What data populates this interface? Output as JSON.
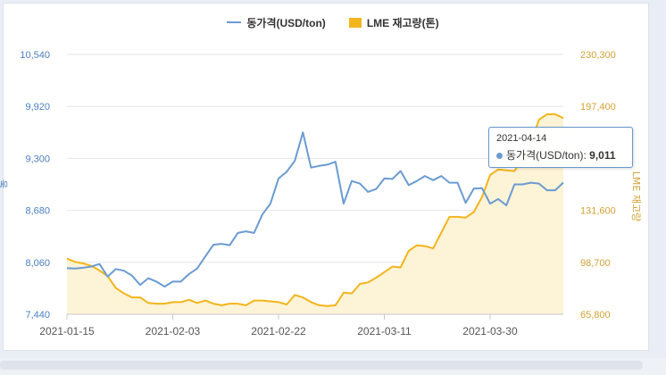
{
  "colors": {
    "price": "#6b9bd1",
    "stock_line": "#f2b51c",
    "stock_fill": "#fdf3d7",
    "grid": "#e6e6e6",
    "left_axis_text": "#4a7fc1",
    "right_axis_text": "#d2a335",
    "x_axis_text": "#555555"
  },
  "legend": {
    "price_label": "동가격(USD/ton)",
    "stock_label": "LME 재고량(톤)"
  },
  "tooltip": {
    "date": "2021-04-14",
    "series_label": "동가격(USD/ton):",
    "value": "9,011"
  },
  "chart_data": {
    "type": "line",
    "dates": [
      "2021-01-15",
      "2021-01-18",
      "2021-01-19",
      "2021-01-20",
      "2021-01-21",
      "2021-01-22",
      "2021-01-25",
      "2021-01-26",
      "2021-01-27",
      "2021-01-28",
      "2021-01-29",
      "2021-02-01",
      "2021-02-02",
      "2021-02-03",
      "2021-02-04",
      "2021-02-05",
      "2021-02-08",
      "2021-02-09",
      "2021-02-10",
      "2021-02-11",
      "2021-02-12",
      "2021-02-15",
      "2021-02-16",
      "2021-02-17",
      "2021-02-18",
      "2021-02-19",
      "2021-02-22",
      "2021-02-23",
      "2021-02-24",
      "2021-02-25",
      "2021-02-26",
      "2021-03-01",
      "2021-03-02",
      "2021-03-03",
      "2021-03-04",
      "2021-03-05",
      "2021-03-08",
      "2021-03-09",
      "2021-03-10",
      "2021-03-11",
      "2021-03-12",
      "2021-03-15",
      "2021-03-16",
      "2021-03-17",
      "2021-03-18",
      "2021-03-19",
      "2021-03-22",
      "2021-03-23",
      "2021-03-24",
      "2021-03-25",
      "2021-03-26",
      "2021-03-29",
      "2021-03-30",
      "2021-03-31",
      "2021-04-01",
      "2021-04-06",
      "2021-04-07",
      "2021-04-08",
      "2021-04-09",
      "2021-04-12",
      "2021-04-13",
      "2021-04-14"
    ],
    "series": [
      {
        "name": "동가격(USD/ton)",
        "axis": "left",
        "type": "line",
        "values": [
          7990,
          7985,
          7995,
          8010,
          8040,
          7890,
          7980,
          7960,
          7900,
          7790,
          7870,
          7830,
          7770,
          7830,
          7830,
          7920,
          7985,
          8130,
          8270,
          8280,
          8265,
          8410,
          8430,
          8410,
          8630,
          8760,
          9060,
          9140,
          9270,
          9610,
          9190,
          9210,
          9225,
          9260,
          8760,
          9030,
          9000,
          8900,
          8935,
          9060,
          9055,
          9150,
          8980,
          9030,
          9090,
          9040,
          9090,
          9010,
          9010,
          8770,
          8940,
          8945,
          8760,
          8815,
          8740,
          8990,
          8990,
          9010,
          9000,
          8920,
          8920,
          9011
        ]
      },
      {
        "name": "LME 재고량(톤)",
        "axis": "right",
        "type": "area",
        "values": [
          101000,
          99000,
          98000,
          96500,
          93500,
          90000,
          82500,
          79000,
          76500,
          76500,
          73000,
          72500,
          72500,
          73500,
          73500,
          75000,
          73000,
          74500,
          72500,
          71500,
          72500,
          72500,
          71500,
          74500,
          74500,
          74000,
          73500,
          72000,
          78000,
          76500,
          73500,
          71500,
          71000,
          71500,
          79500,
          79000,
          85000,
          86000,
          89000,
          92500,
          96000,
          95500,
          106000,
          109500,
          109000,
          107500,
          117500,
          127500,
          127500,
          127000,
          130500,
          140000,
          154000,
          157500,
          157000,
          156500,
          165500,
          174000,
          189000,
          192500,
          192500,
          190000
        ]
      }
    ],
    "x_tick_labels": [
      "2021-01-15",
      "2021-02-03",
      "2021-02-22",
      "2021-03-11",
      "2021-03-30"
    ],
    "y_left": {
      "ticks": [
        "10,540",
        "9,920",
        "9,300",
        "8,680",
        "8,060",
        "7,440"
      ],
      "min": 7440,
      "max": 10540,
      "label": "동"
    },
    "y_right": {
      "ticks": [
        "230,300",
        "197,400",
        "164,500",
        "131,600",
        "98,700",
        "65,800"
      ],
      "min": 65800,
      "max": 230300,
      "label": "LME 재고량"
    },
    "grid": true,
    "legend_position": "top-center"
  }
}
